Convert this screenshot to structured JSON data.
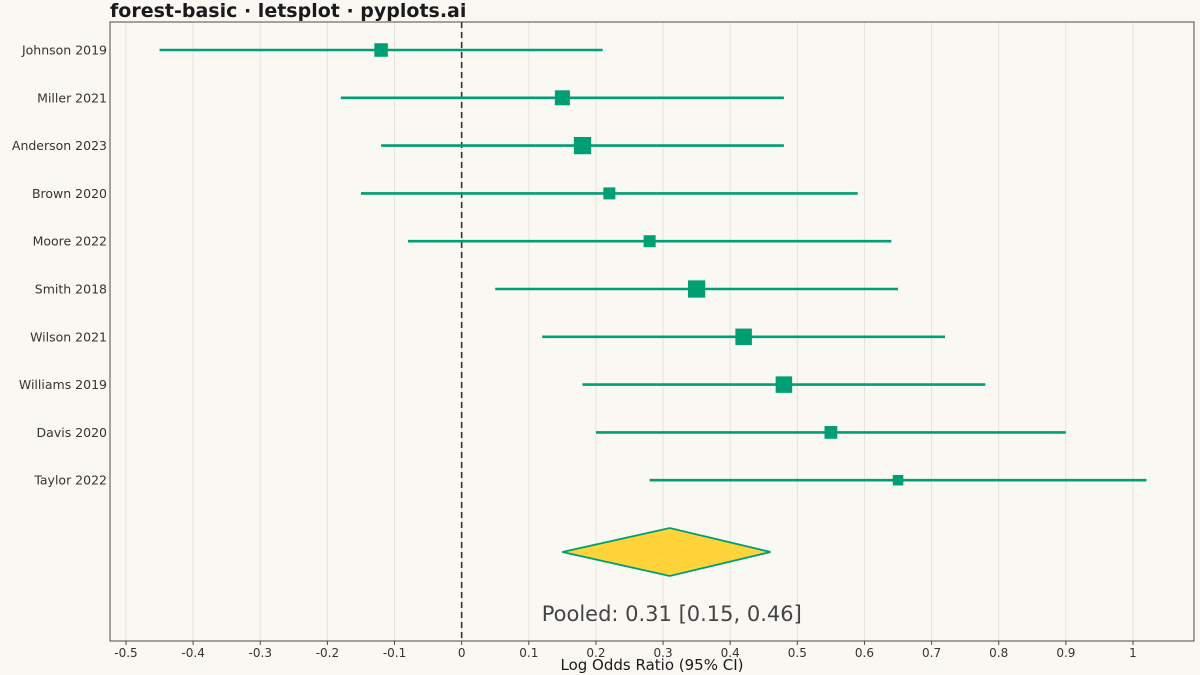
{
  "chart_data": {
    "type": "forest",
    "title": "forest-basic · letsplot · pyplots.ai",
    "xlabel": "Log Odds Ratio (95% CI)",
    "ylabel": "",
    "xlim": [
      -0.52,
      1.08
    ],
    "xticks": [
      -0.5,
      -0.4,
      -0.3,
      -0.2,
      -0.1,
      0,
      0.1,
      0.2,
      0.3,
      0.4,
      0.5,
      0.6,
      0.7,
      0.8,
      0.9,
      1
    ],
    "xtick_labels": [
      "-0.5",
      "-0.4",
      "-0.3",
      "-0.2",
      "-0.1",
      "0",
      "0.1",
      "0.2",
      "0.3",
      "0.4",
      "0.5",
      "0.6",
      "0.7",
      "0.8",
      "0.9",
      "1"
    ],
    "reference_line": 0,
    "grid": "vertical",
    "colors": {
      "study": "#009e73",
      "pooled_fill": "#ffd43b",
      "pooled_edge": "#009e73",
      "reference": "#333333",
      "grid": "#e6e3dc",
      "background": "#faf8f3"
    },
    "studies": [
      {
        "name": "Johnson 2019",
        "estimate": -0.12,
        "lower": -0.45,
        "upper": 0.21,
        "weight": 0.9
      },
      {
        "name": "Miller 2021",
        "estimate": 0.15,
        "lower": -0.18,
        "upper": 0.48,
        "weight": 1.0
      },
      {
        "name": "Anderson 2023",
        "estimate": 0.18,
        "lower": -0.12,
        "upper": 0.48,
        "weight": 1.15
      },
      {
        "name": "Brown 2020",
        "estimate": 0.22,
        "lower": -0.15,
        "upper": 0.59,
        "weight": 0.8
      },
      {
        "name": "Moore 2022",
        "estimate": 0.28,
        "lower": -0.08,
        "upper": 0.64,
        "weight": 0.8
      },
      {
        "name": "Smith 2018",
        "estimate": 0.35,
        "lower": 0.05,
        "upper": 0.65,
        "weight": 1.15
      },
      {
        "name": "Wilson 2021",
        "estimate": 0.42,
        "lower": 0.12,
        "upper": 0.72,
        "weight": 1.1
      },
      {
        "name": "Williams 2019",
        "estimate": 0.48,
        "lower": 0.18,
        "upper": 0.78,
        "weight": 1.1
      },
      {
        "name": "Davis 2020",
        "estimate": 0.55,
        "lower": 0.2,
        "upper": 0.9,
        "weight": 0.85
      },
      {
        "name": "Taylor 2022",
        "estimate": 0.65,
        "lower": 0.28,
        "upper": 1.02,
        "weight": 0.7
      }
    ],
    "pooled": {
      "estimate": 0.31,
      "lower": 0.15,
      "upper": 0.46,
      "label": "Pooled: 0.31 [0.15, 0.46]"
    }
  }
}
